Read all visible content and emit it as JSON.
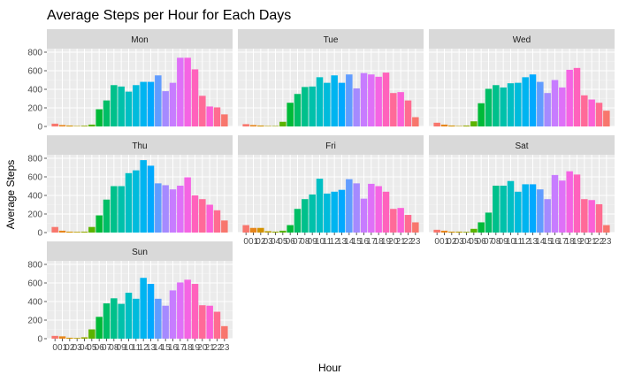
{
  "chart_data": {
    "type": "bar",
    "title": "Average Steps per Hour for Each Days",
    "xlabel": "Hour",
    "ylabel": "Average Steps",
    "ylim": [
      0,
      800
    ],
    "yticks": [
      0,
      200,
      400,
      600,
      800
    ],
    "categories": [
      "00",
      "01",
      "02",
      "03",
      "04",
      "05",
      "06",
      "07",
      "08",
      "09",
      "10",
      "11",
      "12",
      "13",
      "14",
      "15",
      "16",
      "17",
      "18",
      "19",
      "20",
      "21",
      "22",
      "23"
    ],
    "xtick_labels": [
      "0",
      "01",
      "02",
      "03",
      "04",
      "05",
      "06",
      "07",
      "08",
      "09",
      "10",
      "11",
      "12",
      "13",
      "14",
      "15",
      "16",
      "17",
      "18",
      "19",
      "20",
      "21",
      "22",
      "23"
    ],
    "grid": true,
    "facet_layout": "3 columns, 3 rows",
    "colors": [
      "#F8766D",
      "#E7861B",
      "#D39200",
      "#BA9E00",
      "#95A900",
      "#5BB300",
      "#00BA38",
      "#00BE67",
      "#00C08B",
      "#00C1AA",
      "#00BFC4",
      "#00BBDC",
      "#00B4F0",
      "#00A9FF",
      "#619CFF",
      "#A58AFF",
      "#C77CFF",
      "#DF70F8",
      "#F564E3",
      "#FF62BC",
      "#FF6A98",
      "#FB61D7",
      "#FF6C91",
      "#F8766D"
    ],
    "panels": [
      {
        "name": "Mon",
        "values": [
          30,
          15,
          10,
          5,
          8,
          20,
          185,
          280,
          445,
          430,
          375,
          445,
          480,
          480,
          550,
          380,
          470,
          740,
          740,
          615,
          330,
          215,
          205,
          130
        ]
      },
      {
        "name": "Tue",
        "values": [
          25,
          15,
          10,
          5,
          5,
          50,
          255,
          350,
          425,
          430,
          530,
          470,
          550,
          470,
          560,
          410,
          575,
          560,
          535,
          580,
          360,
          370,
          280,
          100
        ]
      },
      {
        "name": "Wed",
        "values": [
          40,
          20,
          10,
          5,
          10,
          55,
          250,
          405,
          445,
          420,
          465,
          470,
          530,
          560,
          480,
          360,
          500,
          420,
          610,
          630,
          335,
          290,
          255,
          170
        ]
      },
      {
        "name": "Thu",
        "values": [
          60,
          20,
          10,
          8,
          10,
          60,
          185,
          355,
          500,
          500,
          640,
          670,
          780,
          720,
          530,
          510,
          465,
          505,
          595,
          400,
          360,
          300,
          240,
          130
        ]
      },
      {
        "name": "Fri",
        "values": [
          80,
          50,
          50,
          15,
          10,
          20,
          80,
          255,
          360,
          410,
          580,
          420,
          440,
          460,
          575,
          530,
          365,
          525,
          500,
          440,
          255,
          265,
          190,
          110
        ]
      },
      {
        "name": "Sat",
        "values": [
          30,
          20,
          10,
          10,
          8,
          40,
          110,
          215,
          505,
          505,
          555,
          440,
          520,
          520,
          465,
          360,
          620,
          560,
          660,
          625,
          360,
          350,
          305,
          80
        ]
      },
      {
        "name": "Sun",
        "values": [
          30,
          25,
          10,
          8,
          15,
          100,
          235,
          380,
          435,
          375,
          495,
          430,
          655,
          590,
          430,
          355,
          520,
          605,
          635,
          590,
          360,
          355,
          290,
          135
        ]
      }
    ]
  }
}
